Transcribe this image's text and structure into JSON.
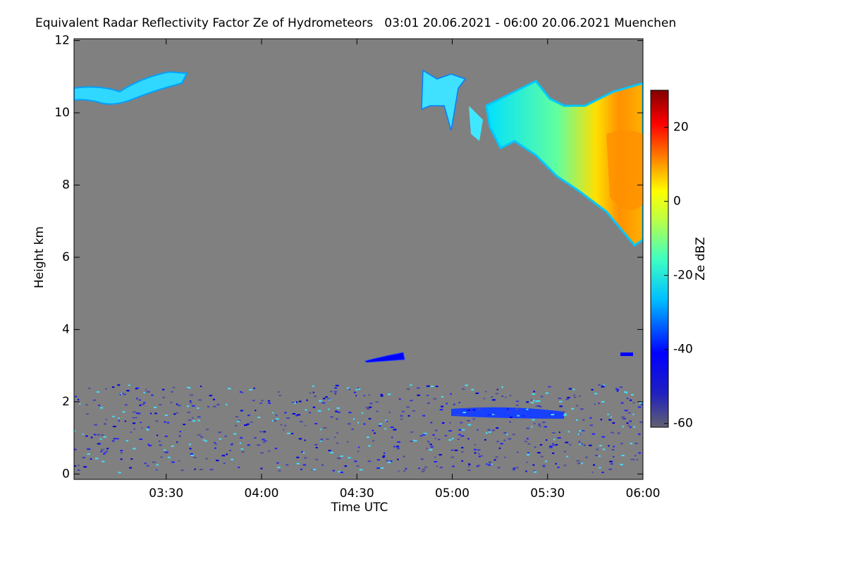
{
  "chart_data": {
    "type": "heatmap",
    "title": "Equivalent Radar Reflectivity Factor Ze of Hydrometeors   03:01 20.06.2021 - 06:00 20.06.2021 Muenchen",
    "x_label": "Time UTC",
    "y_label": "Height km",
    "colorbar_label": "Ze dBZ",
    "background_color": "#808080",
    "xlim": [
      181,
      360
    ],
    "xticks": [
      {
        "value": 210,
        "label": "03:30"
      },
      {
        "value": 240,
        "label": "04:00"
      },
      {
        "value": 270,
        "label": "04:30"
      },
      {
        "value": 300,
        "label": "05:00"
      },
      {
        "value": 330,
        "label": "05:30"
      },
      {
        "value": 360,
        "label": "06:00"
      }
    ],
    "ylim": [
      -0.15,
      12.05
    ],
    "yticks": [
      0,
      2,
      4,
      6,
      8,
      10,
      12
    ],
    "clim": [
      -61,
      30
    ],
    "cticks": [
      -60,
      -40,
      -20,
      0,
      20
    ]
  }
}
